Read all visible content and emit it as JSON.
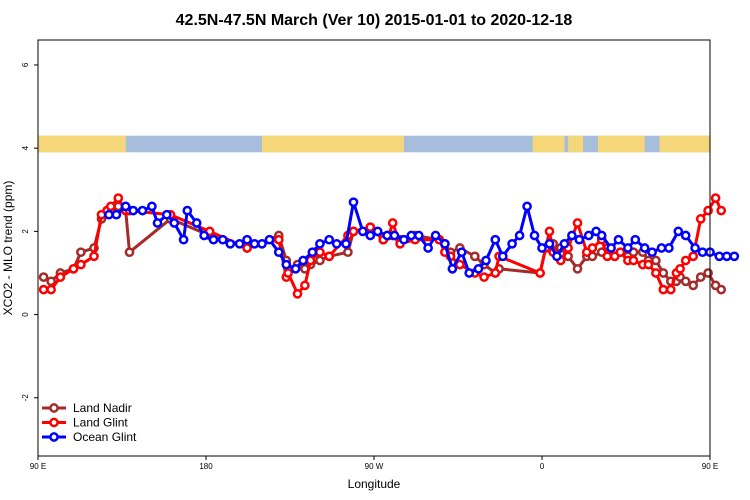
{
  "chart_data": {
    "type": "line",
    "title": "42.5N-47.5N March (Ver 10)   2015-01-01 to 2020-12-18",
    "xlabel": "Longitude",
    "ylabel": "XCO2 - MLO trend (ppm)",
    "xlim": [
      90,
      450
    ],
    "ylim": [
      -3.4,
      6.6
    ],
    "x_ticks": [
      {
        "value": 90,
        "label": "90 E"
      },
      {
        "value": 180,
        "label": "180"
      },
      {
        "value": 270,
        "label": "90 W"
      },
      {
        "value": 360,
        "label": "0"
      },
      {
        "value": 450,
        "label": "90 E"
      }
    ],
    "y_ticks": [
      {
        "value": -2,
        "label": "-2"
      },
      {
        "value": 0,
        "label": "0"
      },
      {
        "value": 2,
        "label": "2"
      },
      {
        "value": 4,
        "label": "4"
      },
      {
        "value": 6,
        "label": "6"
      }
    ],
    "grid": false,
    "legend_position": "bottom-left",
    "land_ocean_strip": {
      "y_range": [
        3.9,
        4.3
      ],
      "land_color": "#F5D77A",
      "ocean_color": "#A6BDDB",
      "land_segments": [
        [
          90,
          137
        ],
        [
          210,
          286
        ],
        [
          355,
          372
        ],
        [
          374,
          382
        ],
        [
          390,
          415
        ],
        [
          423,
          456
        ]
      ]
    },
    "series": [
      {
        "name": "Land Nadir",
        "color": "#A52A2A",
        "x": [
          93,
          97,
          102,
          109,
          113,
          120,
          124,
          127,
          129,
          133,
          137,
          139,
          161,
          182,
          202,
          219,
          223,
          224,
          229,
          233,
          236,
          241,
          246,
          256,
          259,
          268,
          275,
          278,
          280,
          284,
          292,
          305,
          308,
          311,
          316,
          324,
          329,
          335,
          337,
          359,
          362,
          364,
          366,
          370,
          374,
          379,
          384,
          387,
          392,
          395,
          399,
          402,
          406,
          409,
          414,
          417,
          421,
          425,
          429,
          432,
          434,
          437,
          441,
          445,
          449,
          453,
          456
        ],
        "y": [
          0.9,
          0.8,
          1.0,
          1.1,
          1.5,
          1.6,
          2.3,
          2.5,
          2.5,
          2.6,
          2.5,
          1.5,
          2.3,
          1.9,
          1.6,
          1.9,
          1.3,
          1.1,
          1.2,
          1.1,
          1.2,
          1.3,
          1.4,
          1.5,
          2.0,
          2.1,
          1.8,
          1.9,
          1.9,
          1.8,
          1.9,
          1.8,
          1.7,
          1.5,
          1.6,
          1.4,
          1.2,
          1.0,
          1.1,
          1.0,
          1.6,
          1.6,
          1.7,
          1.6,
          1.4,
          1.1,
          1.4,
          1.4,
          1.5,
          1.6,
          1.4,
          1.5,
          1.4,
          1.5,
          1.5,
          1.3,
          1.3,
          1.0,
          0.8,
          0.8,
          0.9,
          0.8,
          0.7,
          0.9,
          1.0,
          0.7,
          0.6
        ]
      },
      {
        "name": "Land Glint",
        "color": "#FF0000",
        "x": [
          93,
          97,
          102,
          109,
          113,
          120,
          124,
          127,
          129,
          133,
          137,
          139,
          161,
          182,
          202,
          219,
          223,
          224,
          229,
          233,
          236,
          241,
          246,
          256,
          259,
          268,
          275,
          278,
          280,
          284,
          292,
          305,
          308,
          311,
          316,
          324,
          329,
          335,
          337,
          359,
          362,
          364,
          366,
          370,
          374,
          379,
          384,
          387,
          392,
          395,
          399,
          402,
          406,
          409,
          414,
          417,
          421,
          425,
          429,
          432,
          434,
          437,
          441,
          445,
          449,
          453,
          456
        ],
        "y": [
          0.6,
          0.6,
          0.9,
          1.1,
          1.2,
          1.4,
          2.4,
          2.5,
          2.6,
          2.8,
          2.5,
          2.5,
          2.4,
          2.0,
          1.6,
          1.8,
          0.9,
          1.0,
          0.5,
          0.7,
          1.3,
          1.5,
          1.4,
          1.9,
          2.0,
          2.1,
          1.8,
          1.9,
          2.2,
          1.7,
          1.8,
          1.8,
          1.5,
          1.4,
          1.2,
          1.0,
          0.9,
          1.0,
          1.4,
          1.0,
          1.6,
          2.0,
          1.5,
          1.3,
          1.6,
          2.2,
          1.5,
          1.6,
          1.8,
          1.4,
          1.4,
          1.5,
          1.3,
          1.3,
          1.2,
          1.2,
          1.0,
          0.6,
          0.6,
          1.0,
          1.1,
          1.3,
          1.4,
          2.3,
          2.5,
          2.8,
          2.5
        ]
      },
      {
        "name": "Ocean Glint",
        "color": "#0000FF",
        "x": [
          128,
          132,
          137,
          141,
          146,
          151,
          154,
          159,
          163,
          168,
          170,
          175,
          179,
          184,
          189,
          193,
          198,
          202,
          206,
          210,
          214,
          219,
          223,
          228,
          232,
          237,
          241,
          246,
          250,
          255,
          259,
          264,
          268,
          272,
          277,
          281,
          286,
          290,
          294,
          299,
          303,
          308,
          312,
          317,
          321,
          326,
          330,
          335,
          339,
          344,
          348,
          352,
          356,
          360,
          364,
          368,
          372,
          376,
          380,
          385,
          389,
          392,
          397,
          401,
          406,
          410,
          415,
          419,
          424,
          428,
          433,
          437,
          442,
          446,
          450,
          455,
          459,
          463
        ],
        "y": [
          2.4,
          2.4,
          2.6,
          2.5,
          2.5,
          2.6,
          2.2,
          2.4,
          2.2,
          1.8,
          2.5,
          2.2,
          1.9,
          1.8,
          1.8,
          1.7,
          1.7,
          1.8,
          1.7,
          1.7,
          1.8,
          1.5,
          1.2,
          1.1,
          1.3,
          1.5,
          1.7,
          1.8,
          1.7,
          1.7,
          2.7,
          2.0,
          1.9,
          2.0,
          1.9,
          1.9,
          1.8,
          1.9,
          1.9,
          1.6,
          1.9,
          1.7,
          1.1,
          1.5,
          1.0,
          1.1,
          1.3,
          1.8,
          1.4,
          1.7,
          1.9,
          2.6,
          1.9,
          1.6,
          1.7,
          1.4,
          1.7,
          1.9,
          1.8,
          1.9,
          2.0,
          1.9,
          1.6,
          1.8,
          1.6,
          1.8,
          1.6,
          1.5,
          1.6,
          1.6,
          2.0,
          1.9,
          1.6,
          1.5,
          1.5,
          1.4,
          1.4,
          1.4
        ]
      }
    ]
  }
}
